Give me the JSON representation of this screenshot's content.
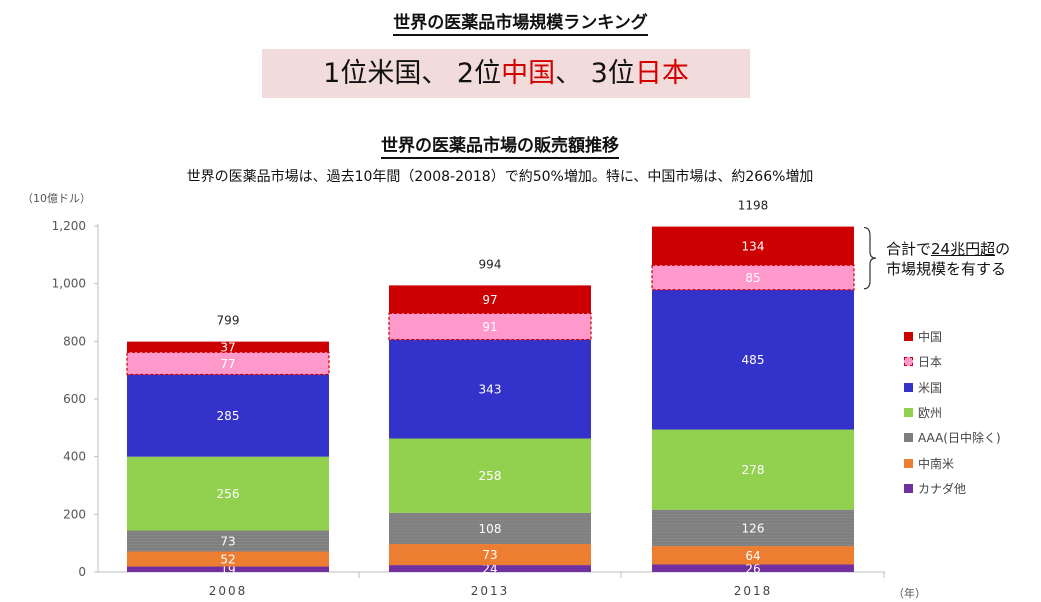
{
  "header": {
    "title": "世界の医薬品市場規模ランキング",
    "ranking": {
      "part1": "1位米国、 2位",
      "part2": "中国",
      "part3": "、 3位",
      "part4": "日本"
    }
  },
  "chart_title": "世界の医薬品市場の販売額推移",
  "subtitle": "世界の医薬品市場は、過去10年間（2008-2018）で約50%増加。特に、中国市場は、約266%増加",
  "unit_label": "（10億ドル）",
  "year_unit": "（年）",
  "annotation": {
    "prefix": "合計で",
    "emph": "24兆円超",
    "suffix": "の",
    "line2": "市場規模を有する"
  },
  "chart_data": {
    "type": "bar",
    "stacked": true,
    "categories": [
      "2008",
      "2013",
      "2018"
    ],
    "totals": [
      799,
      994,
      1198
    ],
    "ylim": [
      0,
      1200
    ],
    "yticks": [
      0,
      200,
      400,
      600,
      800,
      1000,
      1200
    ],
    "ytick_labels": [
      "0",
      "200",
      "400",
      "600",
      "800",
      "1,000",
      "1,200"
    ],
    "series": [
      {
        "name": "カナダ他",
        "values": [
          19,
          24,
          26
        ],
        "color": "#7030a0"
      },
      {
        "name": "中南米",
        "values": [
          52,
          73,
          64
        ],
        "color": "#ed7d31"
      },
      {
        "name": "AAA(日中除く)",
        "values": [
          73,
          108,
          126
        ],
        "color": "#7f7f7f"
      },
      {
        "name": "欧州",
        "values": [
          256,
          258,
          278
        ],
        "color": "#92d050"
      },
      {
        "name": "米国",
        "values": [
          285,
          343,
          485
        ],
        "color": "#3333cc"
      },
      {
        "name": "日本",
        "values": [
          77,
          91,
          85
        ],
        "color": "#ff99cc"
      },
      {
        "name": "中国",
        "values": [
          37,
          97,
          134
        ],
        "color": "#cc0000"
      }
    ],
    "legend_order": [
      "中国",
      "日本",
      "米国",
      "欧州",
      "AAA(日中除く)",
      "中南米",
      "カナダ他"
    ],
    "legend_position": "right"
  }
}
